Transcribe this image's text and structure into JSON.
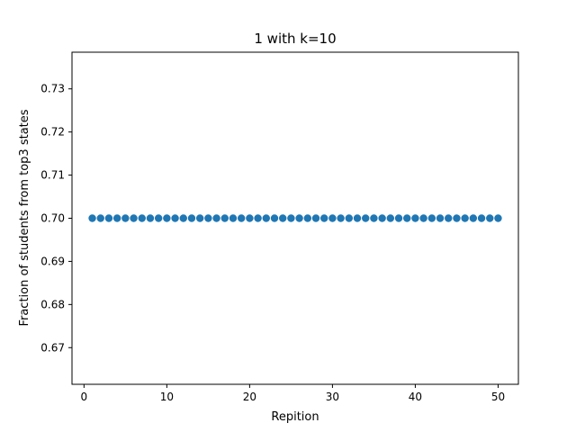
{
  "chart_data": {
    "type": "scatter",
    "title": "1 with k=10",
    "xlabel": "Repition",
    "ylabel": "Fraction of students from top3 states",
    "xlim": [
      -1.45,
      52.45
    ],
    "ylim": [
      0.6615,
      0.7385
    ],
    "xticks": [
      0,
      10,
      20,
      30,
      40,
      50
    ],
    "yticks": [
      0.67,
      0.68,
      0.69,
      0.7,
      0.71,
      0.72,
      0.73
    ],
    "ytick_labels": [
      "0.67",
      "0.68",
      "0.69",
      "0.70",
      "0.71",
      "0.72",
      "0.73"
    ],
    "grid": false,
    "marker_color": "#1f77b4",
    "x": [
      1,
      2,
      3,
      4,
      5,
      6,
      7,
      8,
      9,
      10,
      11,
      12,
      13,
      14,
      15,
      16,
      17,
      18,
      19,
      20,
      21,
      22,
      23,
      24,
      25,
      26,
      27,
      28,
      29,
      30,
      31,
      32,
      33,
      34,
      35,
      36,
      37,
      38,
      39,
      40,
      41,
      42,
      43,
      44,
      45,
      46,
      47,
      48,
      49,
      50
    ],
    "y": [
      0.7,
      0.7,
      0.7,
      0.7,
      0.7,
      0.7,
      0.7,
      0.7,
      0.7,
      0.7,
      0.7,
      0.7,
      0.7,
      0.7,
      0.7,
      0.7,
      0.7,
      0.7,
      0.7,
      0.7,
      0.7,
      0.7,
      0.7,
      0.7,
      0.7,
      0.7,
      0.7,
      0.7,
      0.7,
      0.7,
      0.7,
      0.7,
      0.7,
      0.7,
      0.7,
      0.7,
      0.7,
      0.7,
      0.7,
      0.7,
      0.7,
      0.7,
      0.7,
      0.7,
      0.7,
      0.7,
      0.7,
      0.7,
      0.7,
      0.7
    ]
  }
}
